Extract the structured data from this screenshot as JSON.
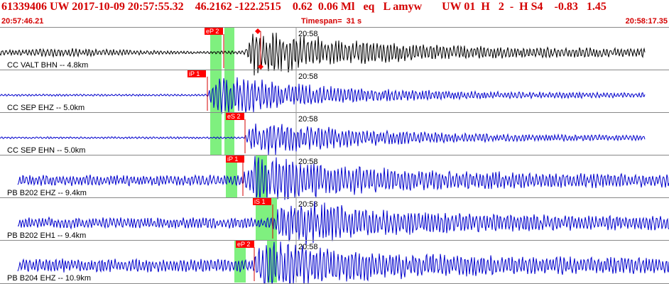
{
  "header": {
    "title": "61339406 UW 2017-10-09 20:57:55.32    46.2162 -122.2515    0.62  0.06 Ml   eq   L amyw       UW 01  H   2  -  H S4    -0.83   1.45",
    "start_time": "20:57:46.21",
    "timespan": "Timespan=  31 s",
    "end_time": "20:58:17.35"
  },
  "colors": {
    "header_text": "#d40000",
    "pick_flag": "#ff0000",
    "pick_line": "#d40000",
    "pick_window": "#7ff07f",
    "trace_black": "#000000",
    "trace_blue": "#0000cc",
    "grid": "#999999",
    "row_border": "#888888"
  },
  "channels": [
    {
      "label": "CC VALT BHN -- 4.8km",
      "minute_label": "20:58",
      "trace_color": "black",
      "picks": [
        {
          "label": "eP 2"
        }
      ],
      "event_marker": true
    },
    {
      "label": "CC SEP  EHZ -- 5.0km",
      "minute_label": "20:58",
      "trace_color": "blue",
      "picks": [
        {
          "label": "iP 1"
        }
      ]
    },
    {
      "label": "CC SEP  EHN -- 5.0km",
      "minute_label": "20:58",
      "trace_color": "blue",
      "picks": [
        {
          "label": "eS 2"
        }
      ]
    },
    {
      "label": "PB B202 EHZ -- 9.4km",
      "minute_label": "20:58",
      "trace_color": "blue",
      "picks": [
        {
          "label": "iP 1"
        }
      ]
    },
    {
      "label": "PB B202 EH1 -- 9.4km",
      "minute_label": "20:58",
      "trace_color": "blue",
      "picks": [
        {
          "label": "iS 1"
        }
      ]
    },
    {
      "label": "PB B204 EHZ -- 10.9km",
      "minute_label": "20:58",
      "trace_color": "blue",
      "picks": [
        {
          "label": "eP 2"
        }
      ]
    }
  ]
}
